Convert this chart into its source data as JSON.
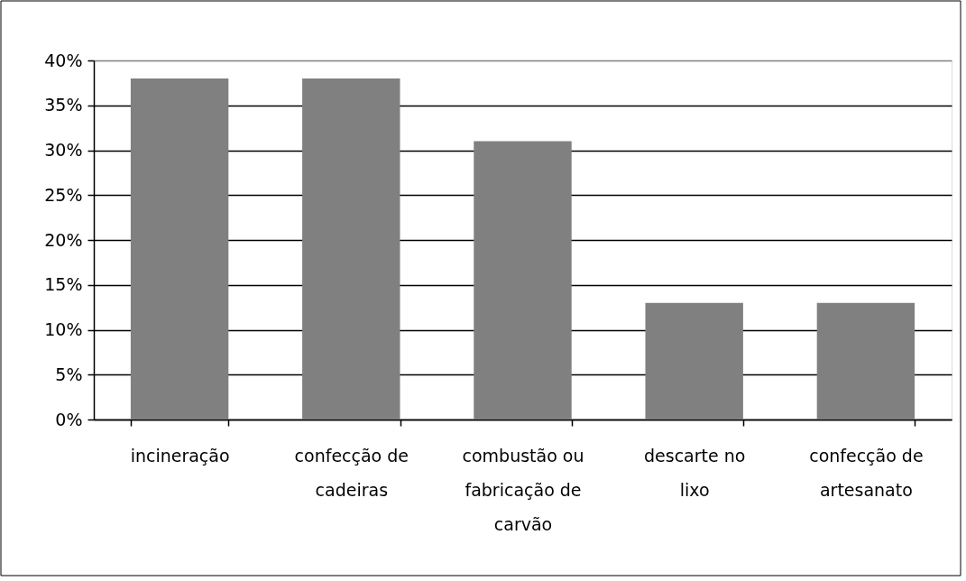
{
  "chart_data": {
    "type": "bar",
    "categories": [
      "incineração",
      "confecção de cadeiras",
      "combustão ou fabricação de carvão",
      "descarte no lixo",
      "confecção de artesanato"
    ],
    "values": [
      38,
      38,
      31,
      13,
      13
    ],
    "color": "#808080",
    "ylim": [
      0,
      40
    ],
    "yticks": [
      {
        "value": 0,
        "label": "0%"
      },
      {
        "value": 5,
        "label": "5%"
      },
      {
        "value": 10,
        "label": "10%"
      },
      {
        "value": 15,
        "label": "15%"
      },
      {
        "value": 20,
        "label": "20%"
      },
      {
        "value": 25,
        "label": "25%"
      },
      {
        "value": 30,
        "label": "30%"
      },
      {
        "value": 35,
        "label": "35%"
      },
      {
        "value": 40,
        "label": "40%"
      }
    ],
    "grid": "y"
  }
}
